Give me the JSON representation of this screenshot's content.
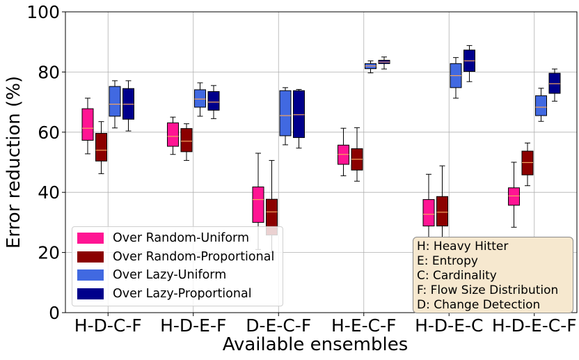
{
  "chart_data": {
    "type": "box",
    "xlabel": "Available ensembles",
    "ylabel": "Error reduction (%)",
    "ylim": [
      0,
      100
    ],
    "yticks": [
      0,
      20,
      40,
      60,
      80,
      100
    ],
    "grid": true,
    "legend_position": "lower-left",
    "categories": [
      "H-D-C-F",
      "H-D-E-F",
      "D-E-C-F",
      "H-E-C-F",
      "H-D-E-C",
      "H-D-E-C-F"
    ],
    "series": [
      {
        "name": "Over Random-Uniform",
        "color": "#ff1493",
        "boxes": [
          {
            "whislo": 52.8,
            "q1": 57.3,
            "med": 61.3,
            "q3": 67.8,
            "whishi": 71.3
          },
          {
            "whislo": 52.6,
            "q1": 55.3,
            "med": 58.6,
            "q3": 63.1,
            "whishi": 65.0
          },
          {
            "whislo": 21.0,
            "q1": 30.0,
            "med": 37.6,
            "q3": 41.8,
            "whishi": 53.0
          },
          {
            "whislo": 45.5,
            "q1": 49.3,
            "med": 52.6,
            "q3": 55.7,
            "whishi": 61.3
          },
          {
            "whislo": 21.0,
            "q1": 28.8,
            "med": 32.7,
            "q3": 37.6,
            "whishi": 46.0
          },
          {
            "whislo": 28.4,
            "q1": 35.7,
            "med": 38.8,
            "q3": 41.5,
            "whishi": 50.0
          }
        ]
      },
      {
        "name": "Over Random-Proportional",
        "color": "#8b0000",
        "boxes": [
          {
            "whislo": 46.2,
            "q1": 50.4,
            "med": 54.0,
            "q3": 59.6,
            "whishi": 63.5
          },
          {
            "whislo": 50.6,
            "q1": 53.5,
            "med": 57.0,
            "q3": 61.2,
            "whishi": 62.8
          },
          {
            "whislo": 20.0,
            "q1": 25.8,
            "med": 33.5,
            "q3": 37.7,
            "whishi": 50.6
          },
          {
            "whislo": 43.7,
            "q1": 47.4,
            "med": 51.0,
            "q3": 54.5,
            "whishi": 61.5
          },
          {
            "whislo": 20.5,
            "q1": 28.8,
            "med": 33.4,
            "q3": 38.6,
            "whishi": 48.8
          },
          {
            "whislo": 42.2,
            "q1": 45.8,
            "med": 49.9,
            "q3": 53.7,
            "whishi": 56.4
          }
        ]
      },
      {
        "name": "Over Lazy-Uniform",
        "color": "#4169e1",
        "boxes": [
          {
            "whislo": 61.4,
            "q1": 65.3,
            "med": 69.3,
            "q3": 75.2,
            "whishi": 77.1
          },
          {
            "whislo": 65.3,
            "q1": 68.3,
            "med": 71.0,
            "q3": 74.1,
            "whishi": 76.4
          },
          {
            "whislo": 55.8,
            "q1": 58.8,
            "med": 65.5,
            "q3": 73.8,
            "whishi": 74.8
          },
          {
            "whislo": 79.7,
            "q1": 81.1,
            "med": 82.0,
            "q3": 82.8,
            "whishi": 83.7
          },
          {
            "whislo": 71.3,
            "q1": 74.8,
            "med": 78.8,
            "q3": 82.8,
            "whishi": 84.8
          },
          {
            "whislo": 63.6,
            "q1": 65.5,
            "med": 68.3,
            "q3": 72.1,
            "whishi": 74.6
          }
        ]
      },
      {
        "name": "Over Lazy-Proportional",
        "color": "#00008b",
        "boxes": [
          {
            "whislo": 60.4,
            "q1": 64.3,
            "med": 69.3,
            "q3": 74.5,
            "whishi": 77.1
          },
          {
            "whislo": 64.5,
            "q1": 67.3,
            "med": 70.0,
            "q3": 73.5,
            "whishi": 75.5
          },
          {
            "whislo": 54.7,
            "q1": 58.2,
            "med": 65.8,
            "q3": 73.8,
            "whishi": 74.2
          },
          {
            "whislo": 81.0,
            "q1": 82.8,
            "med": 83.3,
            "q3": 83.9,
            "whishi": 85.0
          },
          {
            "whislo": 76.8,
            "q1": 80.2,
            "med": 83.7,
            "q3": 87.3,
            "whishi": 88.8
          },
          {
            "whislo": 70.3,
            "q1": 72.9,
            "med": 76.1,
            "q3": 79.6,
            "whishi": 81.0
          }
        ]
      }
    ],
    "median_color": "#f4a460",
    "annotation": [
      "H: Heavy Hitter",
      "E: Entropy",
      "C: Cardinality",
      "F: Flow Size Distribution",
      "D: Change Detection"
    ]
  }
}
